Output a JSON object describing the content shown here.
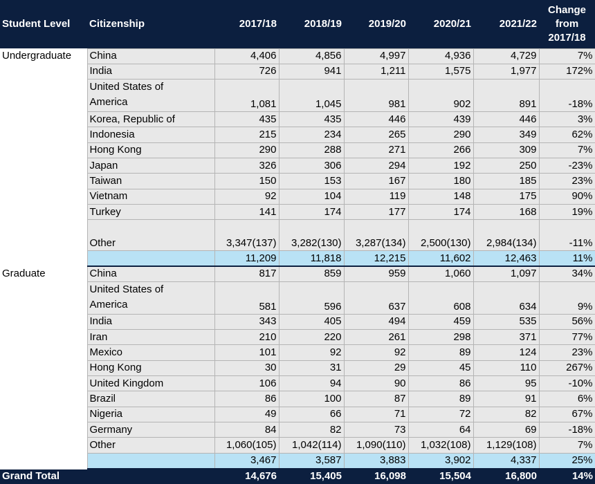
{
  "header": {
    "student_level": "Student Level",
    "citizenship": "Citizenship",
    "years": [
      "2017/18",
      "2018/19",
      "2019/20",
      "2020/21",
      "2021/22"
    ],
    "change_line1": "Change",
    "change_line2": "from",
    "change_line3": "2017/18"
  },
  "undergraduate": {
    "level": "Undergraduate",
    "rows": [
      {
        "citizenship": "China",
        "values": [
          "4,406",
          "4,856",
          "4,997",
          "4,936",
          "4,729"
        ],
        "change": "7%"
      },
      {
        "citizenship": "India",
        "values": [
          "726",
          "941",
          "1,211",
          "1,575",
          "1,977"
        ],
        "change": "172%"
      },
      {
        "citizenship_line1": "United States of",
        "citizenship_line2": "America",
        "values": [
          "1,081",
          "1,045",
          "981",
          "902",
          "891"
        ],
        "change": "-18%"
      },
      {
        "citizenship": "Korea, Republic of",
        "values": [
          "435",
          "435",
          "446",
          "439",
          "446"
        ],
        "change": "3%"
      },
      {
        "citizenship": "Indonesia",
        "values": [
          "215",
          "234",
          "265",
          "290",
          "349"
        ],
        "change": "62%"
      },
      {
        "citizenship": "Hong Kong",
        "values": [
          "290",
          "288",
          "271",
          "266",
          "309"
        ],
        "change": "7%"
      },
      {
        "citizenship": "Japan",
        "values": [
          "326",
          "306",
          "294",
          "192",
          "250"
        ],
        "change": "-23%"
      },
      {
        "citizenship": "Taiwan",
        "values": [
          "150",
          "153",
          "167",
          "180",
          "185"
        ],
        "change": "23%"
      },
      {
        "citizenship": "Vietnam",
        "values": [
          "92",
          "104",
          "119",
          "148",
          "175"
        ],
        "change": "90%"
      },
      {
        "citizenship": "Turkey",
        "values": [
          "141",
          "174",
          "177",
          "174",
          "168"
        ],
        "change": "19%"
      },
      {
        "citizenship": "Other",
        "values": [
          "3,347(137)",
          "3,282(130)",
          "3,287(134)",
          "2,500(130)",
          "2,984(134)"
        ],
        "change": "-11%"
      }
    ],
    "subtotal": {
      "values": [
        "11,209",
        "11,818",
        "12,215",
        "11,602",
        "12,463"
      ],
      "change": "11%"
    }
  },
  "graduate": {
    "level": "Graduate",
    "rows": [
      {
        "citizenship": "China",
        "values": [
          "817",
          "859",
          "959",
          "1,060",
          "1,097"
        ],
        "change": "34%"
      },
      {
        "citizenship_line1": "United States of",
        "citizenship_line2": "America",
        "values": [
          "581",
          "596",
          "637",
          "608",
          "634"
        ],
        "change": "9%"
      },
      {
        "citizenship": "India",
        "values": [
          "343",
          "405",
          "494",
          "459",
          "535"
        ],
        "change": "56%"
      },
      {
        "citizenship": "Iran",
        "values": [
          "210",
          "220",
          "261",
          "298",
          "371"
        ],
        "change": "77%"
      },
      {
        "citizenship": "Mexico",
        "values": [
          "101",
          "92",
          "92",
          "89",
          "124"
        ],
        "change": "23%"
      },
      {
        "citizenship": "Hong Kong",
        "values": [
          "30",
          "31",
          "29",
          "45",
          "110"
        ],
        "change": "267%"
      },
      {
        "citizenship": "United Kingdom",
        "values": [
          "106",
          "94",
          "90",
          "86",
          "95"
        ],
        "change": "-10%"
      },
      {
        "citizenship": "Brazil",
        "values": [
          "86",
          "100",
          "87",
          "89",
          "91"
        ],
        "change": "6%"
      },
      {
        "citizenship": "Nigeria",
        "values": [
          "49",
          "66",
          "71",
          "72",
          "82"
        ],
        "change": "67%"
      },
      {
        "citizenship": "Germany",
        "values": [
          "84",
          "82",
          "73",
          "64",
          "69"
        ],
        "change": "-18%"
      },
      {
        "citizenship": "Other",
        "values": [
          "1,060(105)",
          "1,042(114)",
          "1,090(110)",
          "1,032(108)",
          "1,129(108)"
        ],
        "change": "7%"
      }
    ],
    "subtotal": {
      "values": [
        "3,467",
        "3,587",
        "3,883",
        "3,902",
        "4,337"
      ],
      "change": "25%"
    }
  },
  "grand_total": {
    "label": "Grand Total",
    "values": [
      "14,676",
      "15,405",
      "16,098",
      "15,504",
      "16,800"
    ],
    "change": "14%"
  },
  "colors": {
    "header_bg": "#0c1f3f",
    "cell_bg": "#e8e8e8",
    "subtotal_bg": "#b9e2f5"
  }
}
